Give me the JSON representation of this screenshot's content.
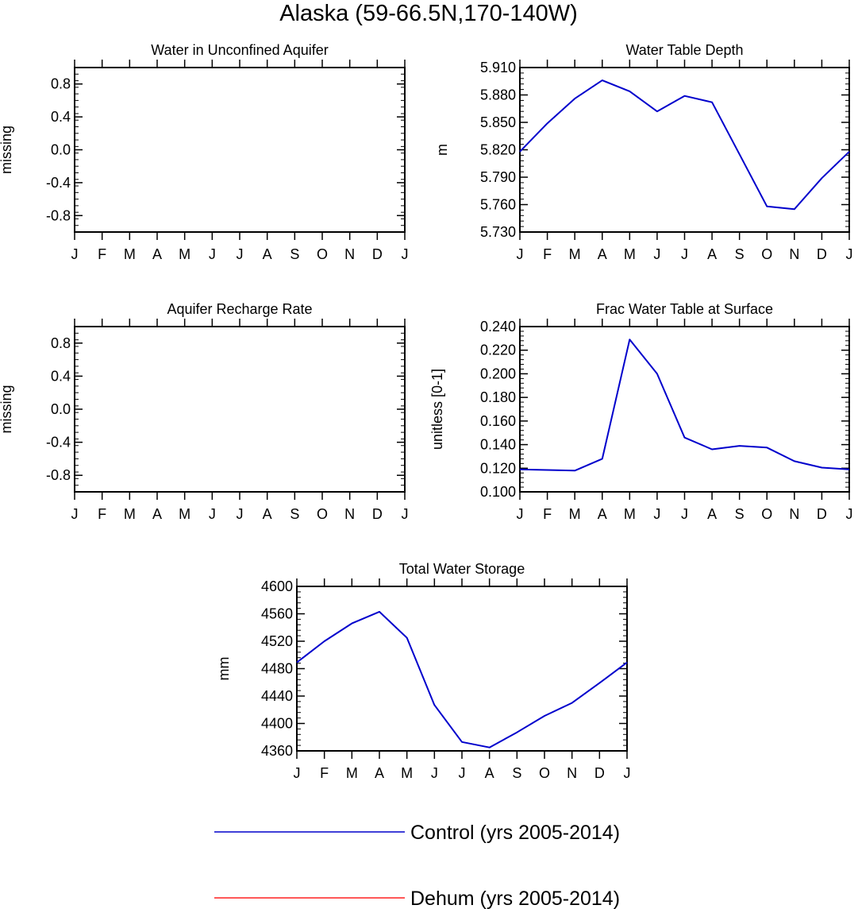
{
  "figure": {
    "title": "Alaska (59-66.5N,170-140W)"
  },
  "legend": {
    "placement": "bottom-center",
    "items": [
      {
        "label": "Control (yrs 2005-2014)",
        "color": "#0000cc"
      },
      {
        "label": "Dehum (yrs 2005-2014)",
        "color": "#ff2020"
      }
    ]
  },
  "chart_data": [
    {
      "type": "line",
      "title": "Water in Unconfined Aquifer",
      "ylabel": "missing",
      "xlabel": "",
      "categories": [
        "J",
        "F",
        "M",
        "A",
        "M",
        "J",
        "J",
        "A",
        "S",
        "O",
        "N",
        "D",
        "J"
      ],
      "ylim": [
        -1.0,
        1.0
      ],
      "yticks": [
        -0.8,
        -0.4,
        0.0,
        0.4,
        0.8
      ],
      "ytick_labels": [
        "-0.8",
        "-0.4",
        "0.0",
        "0.4",
        "0.8"
      ],
      "series": []
    },
    {
      "type": "line",
      "title": "Water Table Depth",
      "ylabel": "m",
      "xlabel": "",
      "categories": [
        "J",
        "F",
        "M",
        "A",
        "M",
        "J",
        "J",
        "A",
        "S",
        "O",
        "N",
        "D",
        "J"
      ],
      "ylim": [
        5.73,
        5.91
      ],
      "yticks": [
        5.73,
        5.76,
        5.79,
        5.82,
        5.85,
        5.88,
        5.91
      ],
      "ytick_labels": [
        "5.730",
        "5.760",
        "5.790",
        "5.820",
        "5.850",
        "5.880",
        "5.910"
      ],
      "series": [
        {
          "color": "#0000cc",
          "values": [
            5.818,
            5.849,
            5.876,
            5.896,
            5.884,
            5.862,
            5.879,
            5.872,
            5.815,
            5.758,
            5.755,
            5.789,
            5.818
          ]
        }
      ]
    },
    {
      "type": "line",
      "title": "Aquifer Recharge Rate",
      "ylabel": "missing",
      "xlabel": "",
      "categories": [
        "J",
        "F",
        "M",
        "A",
        "M",
        "J",
        "J",
        "A",
        "S",
        "O",
        "N",
        "D",
        "J"
      ],
      "ylim": [
        -1.0,
        1.0
      ],
      "yticks": [
        -0.8,
        -0.4,
        0.0,
        0.4,
        0.8
      ],
      "ytick_labels": [
        "-0.8",
        "-0.4",
        "0.0",
        "0.4",
        "0.8"
      ],
      "series": []
    },
    {
      "type": "line",
      "title": "Frac Water Table at Surface",
      "ylabel": "unitless [0-1]",
      "xlabel": "",
      "categories": [
        "J",
        "F",
        "M",
        "A",
        "M",
        "J",
        "J",
        "A",
        "S",
        "O",
        "N",
        "D",
        "J"
      ],
      "ylim": [
        0.1,
        0.24
      ],
      "yticks": [
        0.1,
        0.12,
        0.14,
        0.16,
        0.18,
        0.2,
        0.22,
        0.24
      ],
      "ytick_labels": [
        "0.100",
        "0.120",
        "0.140",
        "0.160",
        "0.180",
        "0.200",
        "0.220",
        "0.240"
      ],
      "series": [
        {
          "color": "#0000cc",
          "values": [
            0.119,
            0.1185,
            0.118,
            0.128,
            0.229,
            0.2,
            0.146,
            0.136,
            0.139,
            0.1375,
            0.126,
            0.1205,
            0.119
          ]
        }
      ]
    },
    {
      "type": "line",
      "title": "Total Water Storage",
      "ylabel": "mm",
      "xlabel": "",
      "categories": [
        "J",
        "F",
        "M",
        "A",
        "M",
        "J",
        "J",
        "A",
        "S",
        "O",
        "N",
        "D",
        "J"
      ],
      "ylim": [
        4360,
        4600
      ],
      "yticks": [
        4360,
        4400,
        4440,
        4480,
        4520,
        4560,
        4600
      ],
      "ytick_labels": [
        "4360",
        "4400",
        "4440",
        "4480",
        "4520",
        "4560",
        "4600"
      ],
      "series": [
        {
          "color": "#0000cc",
          "values": [
            4489,
            4520,
            4546,
            4563,
            4525,
            4427,
            4373,
            4365,
            4387,
            4411,
            4430,
            4459,
            4489
          ]
        }
      ]
    }
  ]
}
